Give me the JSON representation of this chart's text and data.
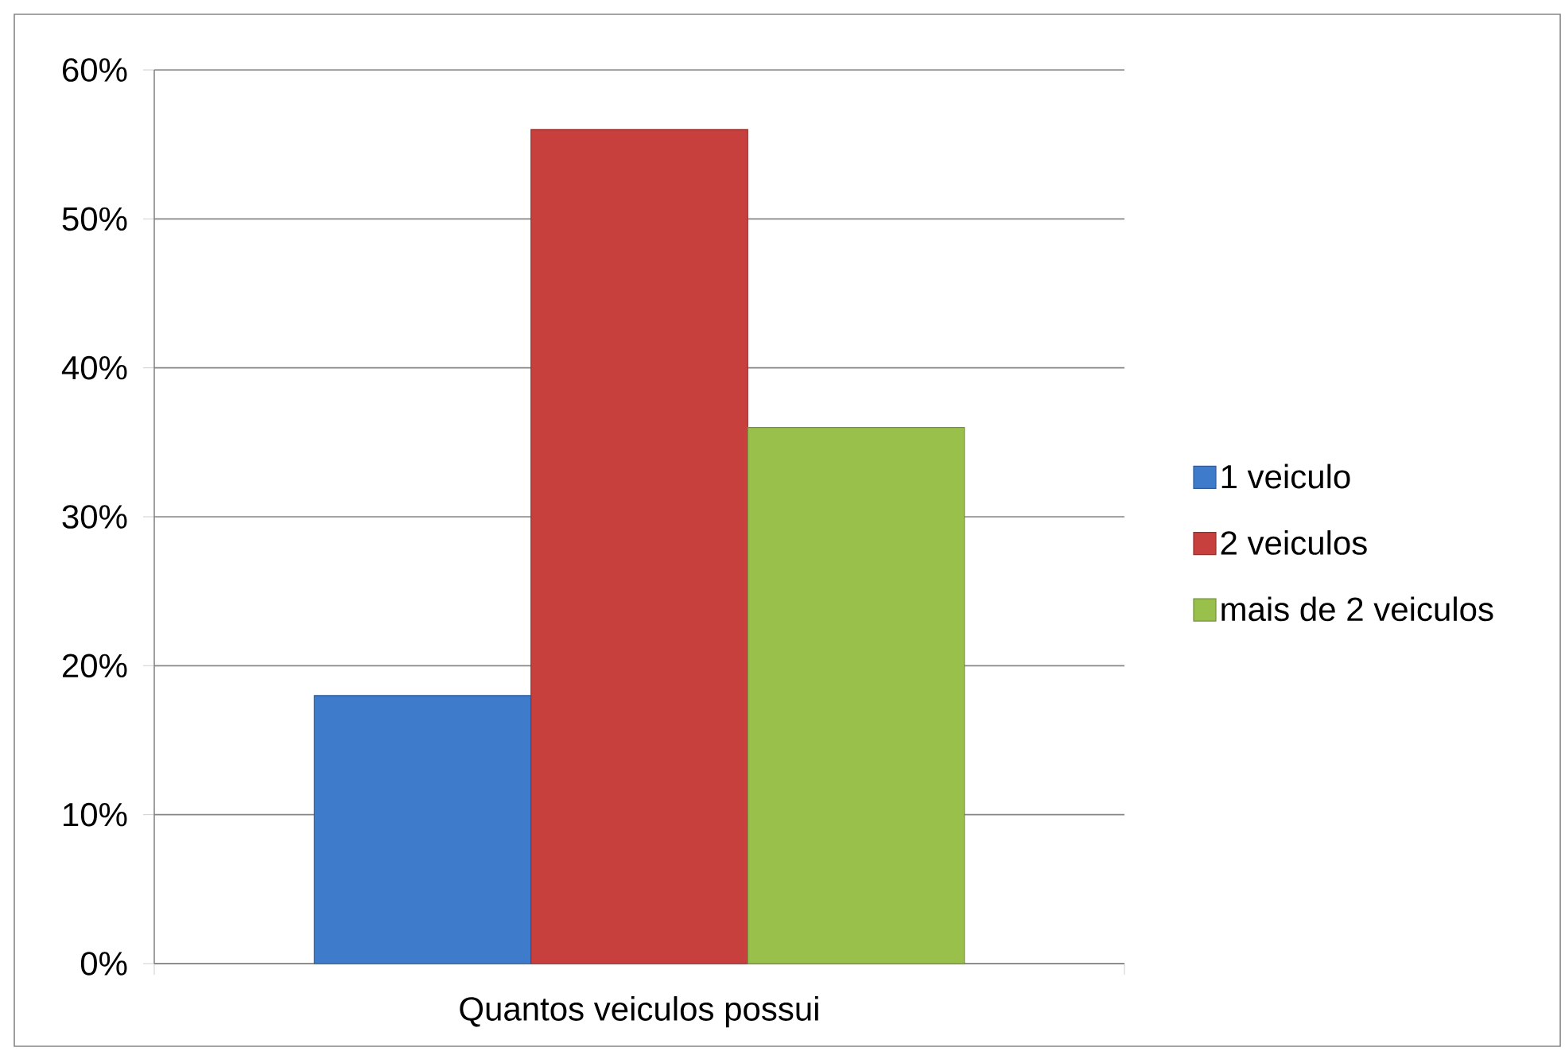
{
  "chart_data": {
    "type": "bar",
    "categories": [
      "Quantos veiculos possui"
    ],
    "series": [
      {
        "name": "1 veiculo",
        "color": "#3f7bcb",
        "values": [
          18
        ]
      },
      {
        "name": "2 veiculos",
        "color": "#c8403d",
        "values": [
          56
        ]
      },
      {
        "name": "mais de 2 veiculos",
        "color": "#9ac04c",
        "values": [
          36
        ]
      }
    ],
    "ylim": [
      0,
      60
    ],
    "yticks": [
      {
        "value": 0,
        "label": "0%"
      },
      {
        "value": 10,
        "label": "10%"
      },
      {
        "value": 20,
        "label": "20%"
      },
      {
        "value": 30,
        "label": "30%"
      },
      {
        "value": 40,
        "label": "40%"
      },
      {
        "value": 50,
        "label": "50%"
      },
      {
        "value": 60,
        "label": "60%"
      }
    ],
    "grid": "y",
    "legend": "right"
  }
}
